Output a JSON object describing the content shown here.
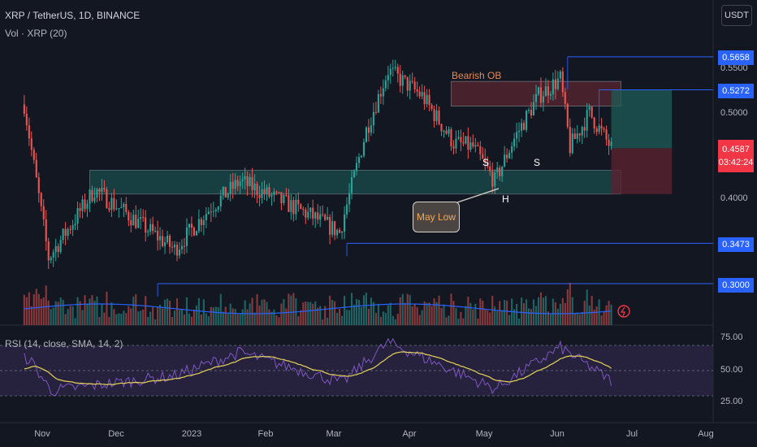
{
  "header": {
    "title": "XRP / TetherUS, 1D, BINANCE",
    "volume_label": "Vol · XRP (20)",
    "rsi_label": "RSI (14, close, SMA, 14, 2)"
  },
  "currency_button": "USDT",
  "price_axis": {
    "ticks": [
      "0.5500",
      "0.5000",
      "0.4000"
    ]
  },
  "price_tags": {
    "level_high": "0.5658",
    "level_ob": "0.5272",
    "current_price": "0.4587",
    "countdown": "03:42:24",
    "level_march_low": "0.3473",
    "level_low": "0.3000"
  },
  "rsi_axis": {
    "ticks": [
      "75.00",
      "50.00",
      "25.00"
    ]
  },
  "x_axis": {
    "ticks": [
      "Nov",
      "Dec",
      "2023",
      "Feb",
      "Mar",
      "Apr",
      "May",
      "Jun",
      "Jul",
      "Aug"
    ]
  },
  "annotations": {
    "bearish_ob": "Bearish OB",
    "shoulder_left": "S",
    "shoulder_right": "S",
    "head": "H",
    "note": "May Low"
  },
  "colors": {
    "background": "#131722",
    "up": "#26a69a",
    "down": "#ef5350",
    "support_zone": "#1b5e5b",
    "bearish_ob_zone": "#6b2a35",
    "level_line": "#2962ff",
    "volume_ma": "#2962ff",
    "rsi_line": "#7e57c2",
    "rsi_ma": "#e6d45a",
    "rsi_band": "#2a2341",
    "annotation": "#e98a4e"
  },
  "chart_data": {
    "type": "candlestick",
    "title": "XRP / TetherUS, 1D, BINANCE",
    "y_range": [
      0.26,
      0.59
    ],
    "x_range": [
      "2022-10-20",
      "2023-08-10"
    ],
    "horizontal_levels": [
      0.5658,
      0.5272,
      0.3473,
      0.3
    ],
    "zones": [
      {
        "name": "support",
        "from_date": "2022-11-26",
        "to_date": "2023-07-03",
        "low": 0.405,
        "high": 0.433
      },
      {
        "name": "Bearish OB",
        "from_date": "2023-04-24",
        "to_date": "2023-07-03",
        "low": 0.508,
        "high": 0.537
      }
    ],
    "key_prices": [
      {
        "date": "2022-10-30",
        "price": 0.51
      },
      {
        "date": "2022-11-09",
        "price": 0.33
      },
      {
        "date": "2022-11-28",
        "price": 0.41
      },
      {
        "date": "2022-12-31",
        "price": 0.34
      },
      {
        "date": "2023-01-15",
        "price": 0.39
      },
      {
        "date": "2023-01-27",
        "price": 0.42
      },
      {
        "date": "2023-02-25",
        "price": 0.38
      },
      {
        "date": "2023-03-09",
        "price": 0.36
      },
      {
        "date": "2023-03-20",
        "price": 0.48
      },
      {
        "date": "2023-03-29",
        "price": 0.55
      },
      {
        "date": "2023-04-12",
        "price": 0.52
      },
      {
        "date": "2023-04-25",
        "price": 0.465
      },
      {
        "date": "2023-05-03",
        "price": 0.46
      },
      {
        "date": "2023-05-12",
        "price": 0.42
      },
      {
        "date": "2023-05-20",
        "price": 0.47
      },
      {
        "date": "2023-05-30",
        "price": 0.52
      },
      {
        "date": "2023-06-08",
        "price": 0.54
      },
      {
        "date": "2023-06-12",
        "price": 0.46
      },
      {
        "date": "2023-06-20",
        "price": 0.5
      },
      {
        "date": "2023-06-29",
        "price": 0.4587
      }
    ],
    "rsi": {
      "levels": [
        75,
        50,
        25
      ],
      "key_values": [
        {
          "date": "2022-11-01",
          "value": 62
        },
        {
          "date": "2022-11-10",
          "value": 30
        },
        {
          "date": "2022-12-31",
          "value": 45
        },
        {
          "date": "2023-01-27",
          "value": 68
        },
        {
          "date": "2023-03-10",
          "value": 38
        },
        {
          "date": "2023-03-29",
          "value": 78
        },
        {
          "date": "2023-05-12",
          "value": 32
        },
        {
          "date": "2023-06-08",
          "value": 73
        },
        {
          "date": "2023-06-29",
          "value": 40
        }
      ]
    }
  }
}
